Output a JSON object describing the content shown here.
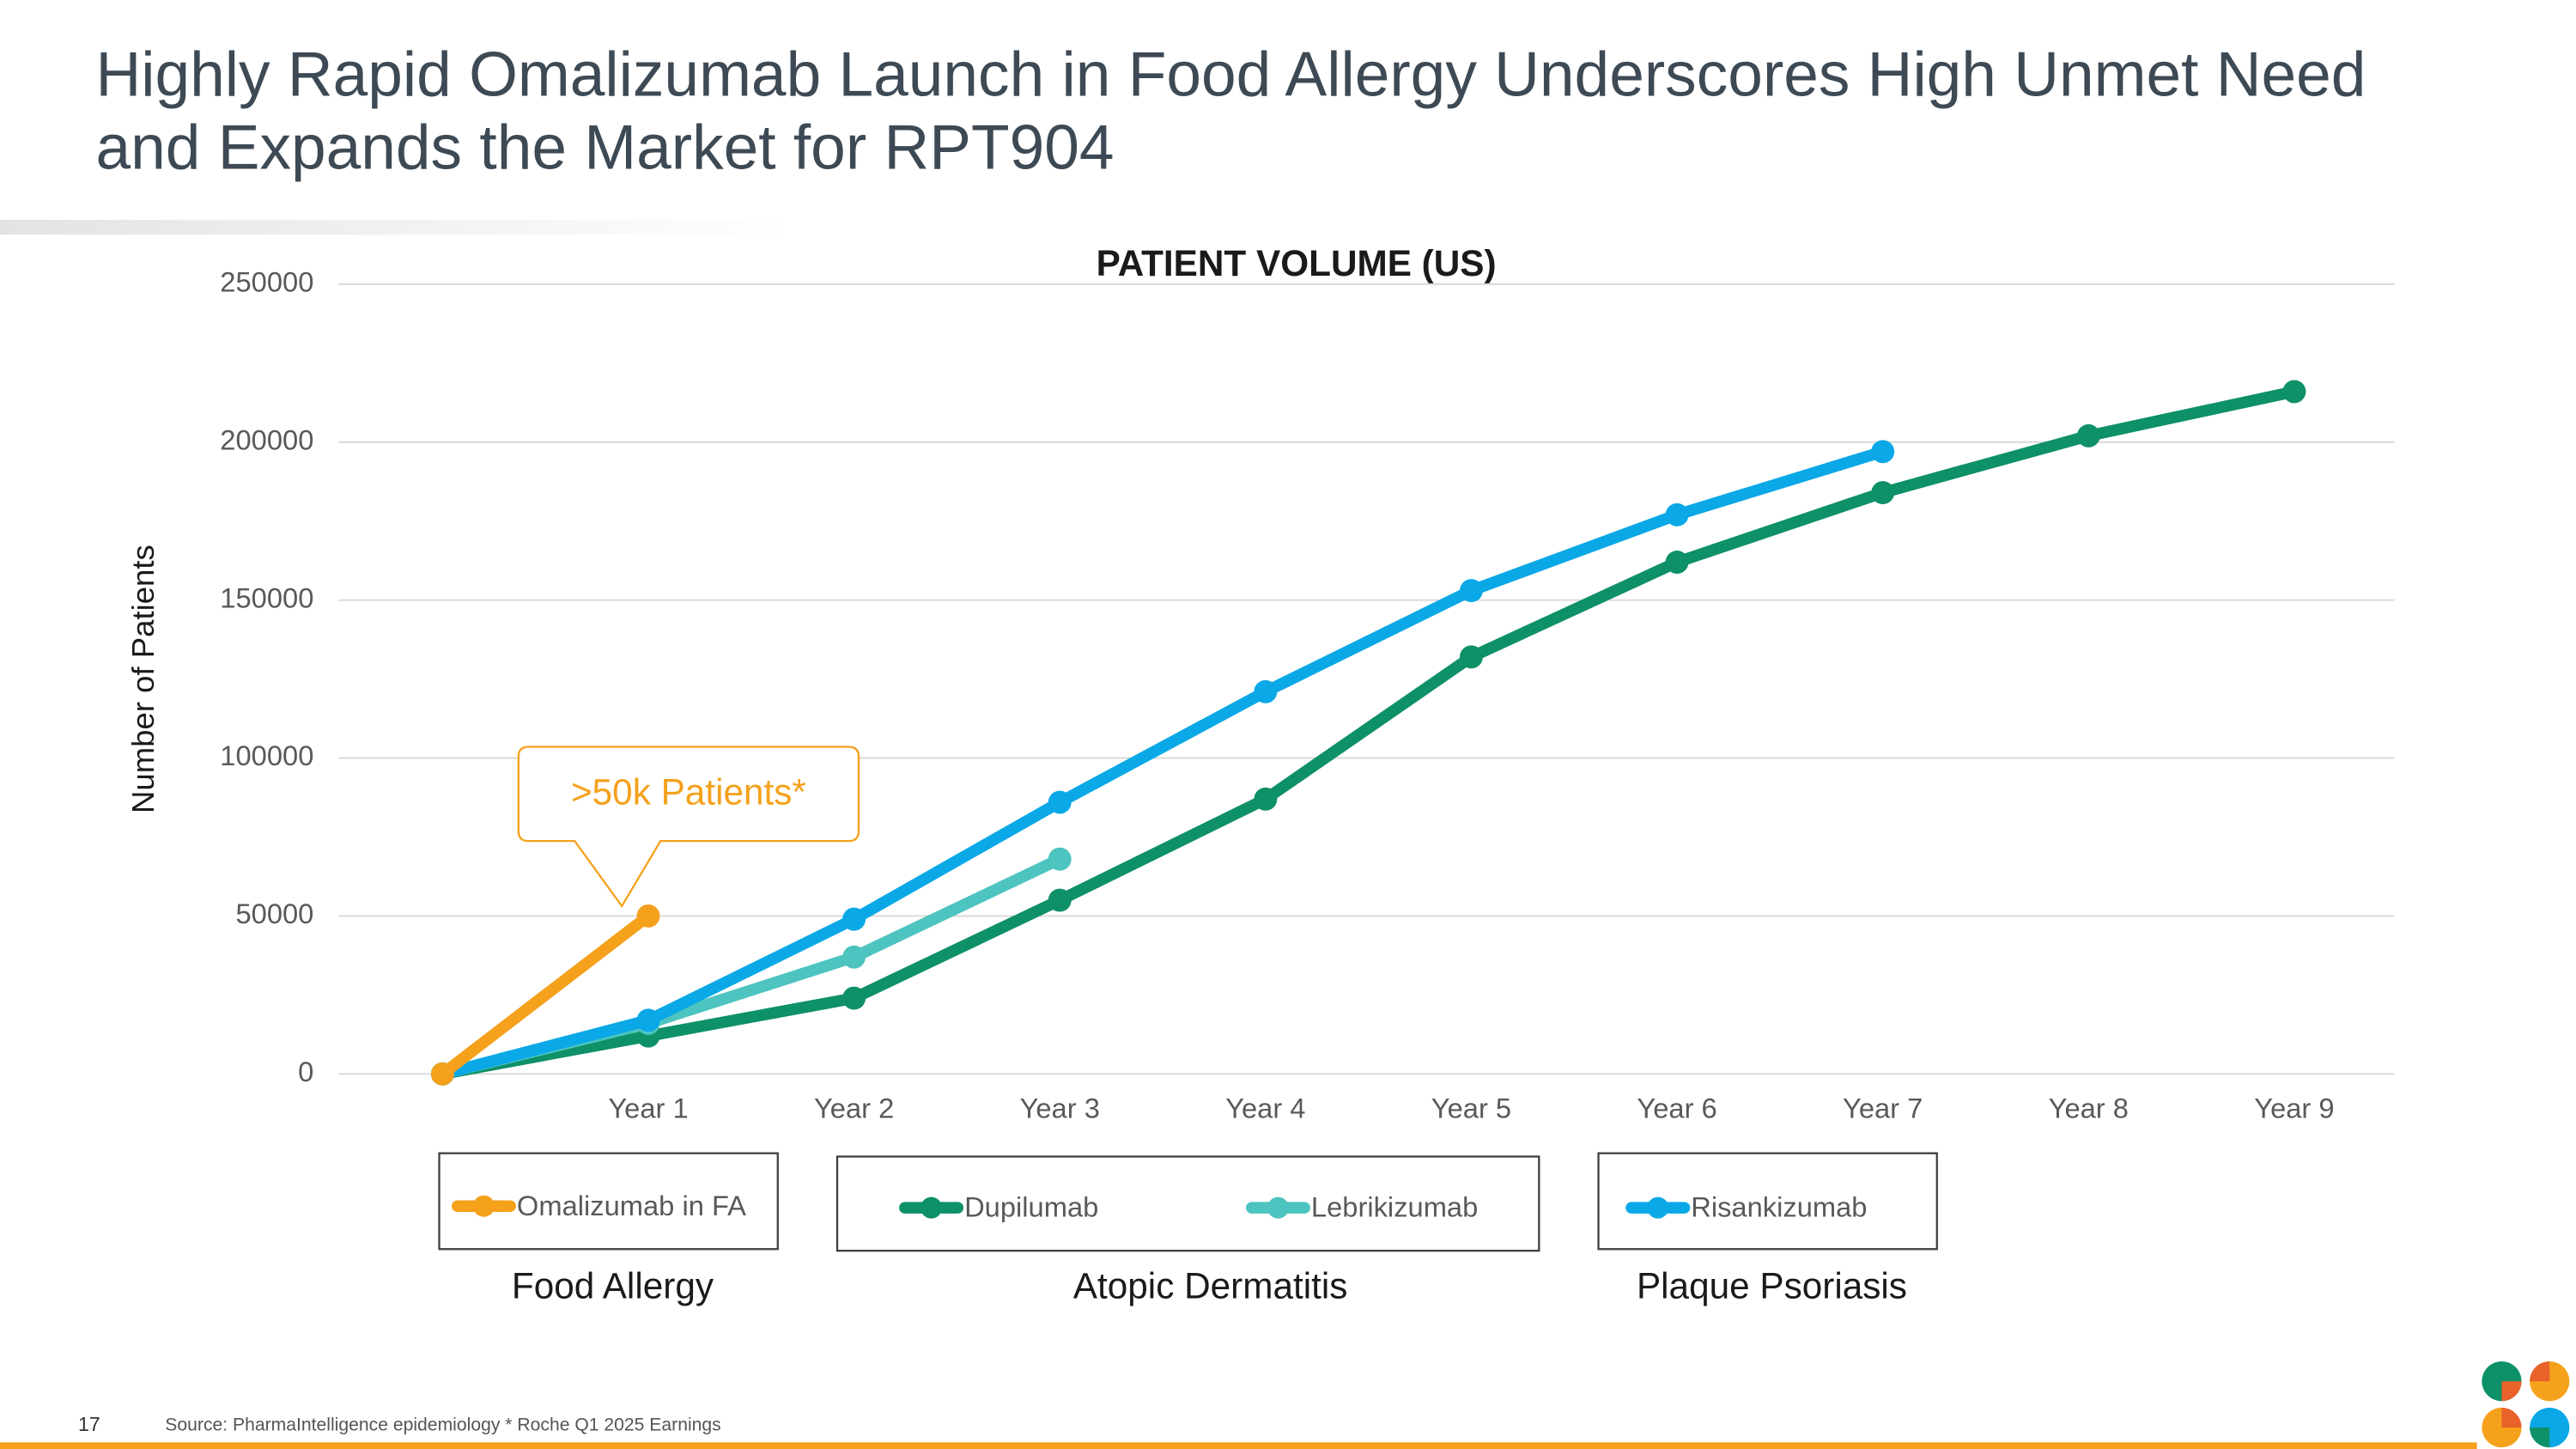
{
  "slide": {
    "title": [
      "Highly Rapid Omalizumab Launch in Food Allergy Underscores High Unmet Need",
      "and Expands the Market for RPT904"
    ],
    "page_number": "17",
    "source": "Source: PharmaIntelligence epidemiology  * Roche Q1 2025 Earnings"
  },
  "chart_data": {
    "type": "line",
    "title": "PATIENT VOLUME (US)",
    "y_label": "Number of Patients",
    "categories": [
      null,
      "Year 1",
      "Year 2",
      "Year 3",
      "Year 4",
      "Year 5",
      "Year 6",
      "Year 7",
      "Year 8",
      "Year 9"
    ],
    "ylim": [
      0,
      250000
    ],
    "yticks": [
      0,
      50000,
      100000,
      150000,
      200000,
      250000
    ],
    "grid": true,
    "annotation": ">50k Patients*",
    "series": [
      {
        "name": "Omalizumab in FA",
        "group": "Food Allergy",
        "color": "#f5a11c",
        "values": [
          0,
          50000,
          null,
          null,
          null,
          null,
          null,
          null,
          null,
          null
        ]
      },
      {
        "name": "Dupilumab",
        "group": "Atopic Dermatitis",
        "color": "#0e9068",
        "values": [
          0,
          12000,
          24000,
          55000,
          87000,
          132000,
          162000,
          184000,
          202000,
          216000
        ]
      },
      {
        "name": "Lebrikizumab",
        "group": "Atopic Dermatitis",
        "color": "#4dc4bf",
        "values": [
          0,
          16000,
          37000,
          68000,
          null,
          null,
          null,
          null,
          null,
          null
        ]
      },
      {
        "name": "Risankizumab",
        "group": "Plaque Psoriasis",
        "color": "#0aa8e6",
        "values": [
          0,
          17000,
          49000,
          86000,
          121000,
          153000,
          177000,
          197000,
          null,
          null
        ]
      }
    ]
  }
}
